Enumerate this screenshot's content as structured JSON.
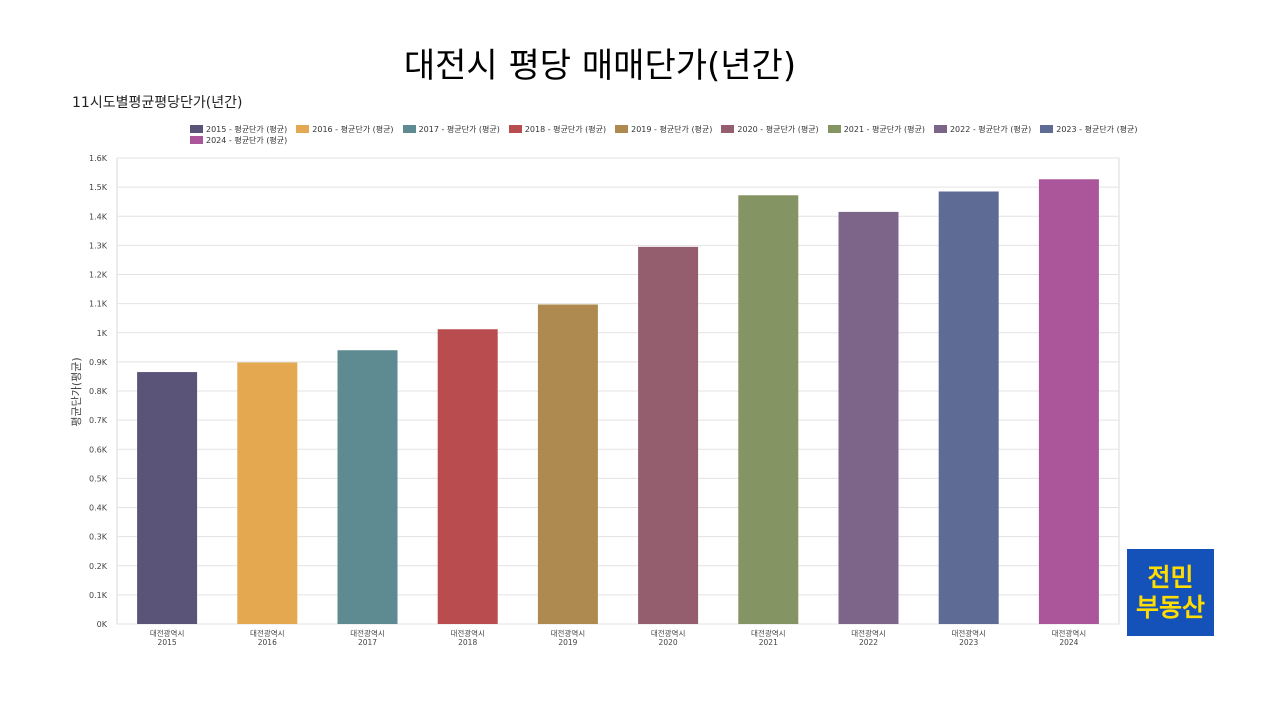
{
  "slide": {
    "title": "대전시 평당 매매단가(년간)"
  },
  "logo": {
    "line1": "전민",
    "line2": "부동산",
    "bg_color": "#1451b8",
    "text_color": "#ffdd00"
  },
  "chart_data": {
    "type": "bar",
    "title": "11시도별평균평당단가(년간)",
    "ylabel": "평균단가(평균)",
    "xlabel": "",
    "ylim": [
      0,
      1600
    ],
    "yticks": [
      0,
      100,
      200,
      300,
      400,
      500,
      600,
      700,
      800,
      900,
      1000,
      1100,
      1200,
      1300,
      1400,
      1500,
      1600
    ],
    "ytick_labels": [
      "0K",
      "0.1K",
      "0.2K",
      "0.3K",
      "0.4K",
      "0.5K",
      "0.6K",
      "0.7K",
      "0.8K",
      "0.9K",
      "1K",
      "1.1K",
      "1.2K",
      "1.3K",
      "1.4K",
      "1.5K",
      "1.6K"
    ],
    "grid": true,
    "legend_position": "top",
    "categories": [
      {
        "region": "대전광역시",
        "year": "2015"
      },
      {
        "region": "대전광역시",
        "year": "2016"
      },
      {
        "region": "대전광역시",
        "year": "2017"
      },
      {
        "region": "대전광역시",
        "year": "2018"
      },
      {
        "region": "대전광역시",
        "year": "2019"
      },
      {
        "region": "대전광역시",
        "year": "2020"
      },
      {
        "region": "대전광역시",
        "year": "2021"
      },
      {
        "region": "대전광역시",
        "year": "2022"
      },
      {
        "region": "대전광역시",
        "year": "2023"
      },
      {
        "region": "대전광역시",
        "year": "2024"
      }
    ],
    "series": [
      {
        "name": "2015 - 평균단가 (평균)",
        "value": 865,
        "color": "#5b5479"
      },
      {
        "name": "2016 - 평균단가 (평균)",
        "value": 898,
        "color": "#e3a850"
      },
      {
        "name": "2017 - 평균단가 (평균)",
        "value": 940,
        "color": "#5e8b92"
      },
      {
        "name": "2018 - 평균단가 (평균)",
        "value": 1012,
        "color": "#b94c4f"
      },
      {
        "name": "2019 - 평균단가 (평균)",
        "value": 1097,
        "color": "#ae8a50"
      },
      {
        "name": "2020 - 평균단가 (평균)",
        "value": 1295,
        "color": "#955e6e"
      },
      {
        "name": "2021 - 평균단가 (평균)",
        "value": 1472,
        "color": "#849563"
      },
      {
        "name": "2022 - 평균단가 (평균)",
        "value": 1415,
        "color": "#7d6589"
      },
      {
        "name": "2023 - 평균단가 (평균)",
        "value": 1485,
        "color": "#5e6b95"
      },
      {
        "name": "2024 - 평균단가 (평균)",
        "value": 1527,
        "color": "#ab569b"
      }
    ]
  }
}
